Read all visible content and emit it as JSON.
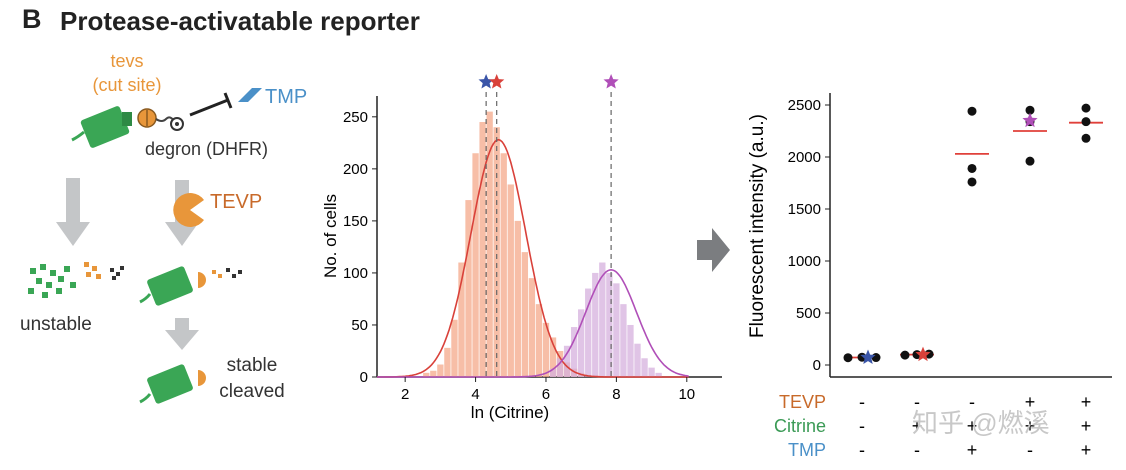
{
  "panel": {
    "letter": "B",
    "title": "Protease-activatable reporter"
  },
  "schematic": {
    "cut_site_line1": "tevs",
    "cut_site_line2": "(cut site)",
    "tmp_label": "TMP",
    "degron_label": "degron (DHFR)",
    "tevp_label": "TEVP",
    "unstable_label": "unstable",
    "stable_line1": "stable",
    "stable_line2": "cleaved",
    "colors": {
      "gfp": "#3aa655",
      "tevs": "#e8963a",
      "tmp": "#4a90c8",
      "arrow": "#c4c6c8"
    }
  },
  "chart_data": [
    {
      "type": "histogram",
      "xlabel": "ln (Citrine)",
      "ylabel": "No. of cells",
      "xlim": [
        1.2,
        11
      ],
      "ylim": [
        0,
        270
      ],
      "xticks": [
        2,
        4,
        6,
        8,
        10
      ],
      "yticks": [
        0,
        50,
        100,
        150,
        200,
        250
      ],
      "series": [
        {
          "color": "#f4a88a",
          "fit_color": "#d9413a",
          "bin_width": 0.18,
          "bins_x": [
            2.6,
            2.8,
            3.0,
            3.2,
            3.4,
            3.6,
            3.8,
            4.0,
            4.2,
            4.4,
            4.6,
            4.8,
            5.0,
            5.2,
            5.4,
            5.6,
            5.8,
            6.0,
            6.2,
            6.4,
            6.6,
            6.8,
            7.0
          ],
          "bins_y": [
            4,
            6,
            12,
            28,
            55,
            110,
            170,
            215,
            245,
            255,
            240,
            215,
            185,
            150,
            120,
            95,
            70,
            52,
            38,
            25,
            14,
            8,
            4
          ],
          "fit_mean": 4.65,
          "fit_peak": 228,
          "fit_sd": 0.78
        },
        {
          "color": "#d6b0de",
          "fit_color": "#b04fb8",
          "bin_width": 0.18,
          "bins_x": [
            6.2,
            6.4,
            6.6,
            6.8,
            7.0,
            7.2,
            7.4,
            7.6,
            7.8,
            8.0,
            8.2,
            8.4,
            8.6,
            8.8,
            9.0,
            9.2
          ],
          "bins_y": [
            8,
            18,
            30,
            48,
            65,
            85,
            100,
            110,
            100,
            90,
            70,
            50,
            32,
            18,
            9,
            4
          ],
          "fit_mean": 7.85,
          "fit_peak": 103,
          "fit_sd": 0.72
        }
      ],
      "markers": [
        {
          "x": 4.3,
          "color": "#3a55a8"
        },
        {
          "x": 4.6,
          "color": "#d9413a"
        },
        {
          "x": 7.85,
          "color": "#b04fb8"
        }
      ]
    },
    {
      "type": "scatter",
      "ylabel": "Fluorescent intensity (a.u.)",
      "ylim": [
        0,
        2600
      ],
      "yticks": [
        0,
        500,
        1000,
        1500,
        2000,
        2500
      ],
      "categories": [
        "1",
        "2",
        "3",
        "4",
        "5"
      ],
      "points": [
        [
          70,
          75,
          72
        ],
        [
          95,
          100,
          105
        ],
        [
          2440,
          1890,
          1760
        ],
        [
          2450,
          2340,
          1960
        ],
        [
          2470,
          2340,
          2180
        ]
      ],
      "means": [
        72,
        100,
        2030,
        2250,
        2330
      ],
      "mean_color": "#e0403a",
      "stars": [
        {
          "category": 0,
          "y": 72,
          "color": "#3a55a8"
        },
        {
          "category": 1,
          "y": 100,
          "color": "#d9413a"
        },
        {
          "category": 3,
          "y": 2350,
          "color": "#b04fb8"
        }
      ],
      "conditions": [
        {
          "label": "TEVP",
          "color": "#c86a2a",
          "values": [
            "-",
            "-",
            "-",
            "+",
            "+"
          ]
        },
        {
          "label": "Citrine",
          "color": "#3a9a55",
          "values": [
            "-",
            "+",
            "+",
            "+",
            "+"
          ]
        },
        {
          "label": "TMP",
          "color": "#4a90c8",
          "values": [
            "-",
            "-",
            "+",
            "-",
            "+"
          ]
        }
      ]
    }
  ],
  "watermark": "知乎 @燃溪"
}
